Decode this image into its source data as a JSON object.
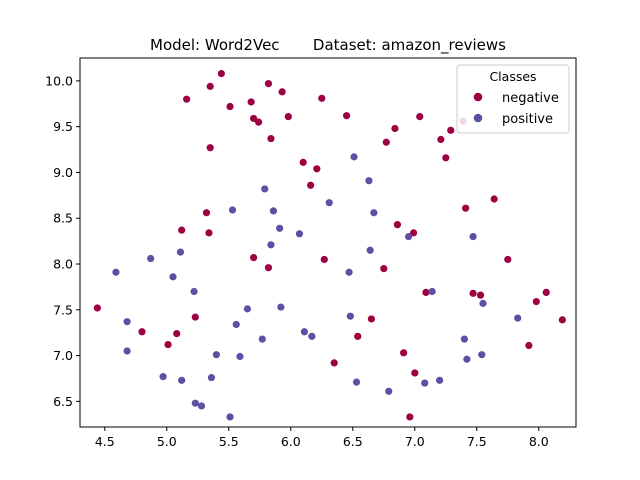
{
  "chart_data": {
    "type": "scatter",
    "title": "Model: Word2Vec       Dataset: amazon_reviews",
    "xlabel": "",
    "ylabel": "",
    "xlim": [
      4.3,
      8.3
    ],
    "ylim": [
      6.22,
      10.25
    ],
    "xticks": [
      "4.5",
      "5.0",
      "5.5",
      "6.0",
      "6.5",
      "7.0",
      "7.5",
      "8.0"
    ],
    "yticks": [
      "6.5",
      "7.0",
      "7.5",
      "8.0",
      "8.5",
      "9.0",
      "9.5",
      "10.0"
    ],
    "grid": false,
    "legend": {
      "title": "Classes",
      "placement": "top-right"
    },
    "series": [
      {
        "name": "negative",
        "color": "#9e0142",
        "points": [
          [
            4.44,
            7.52
          ],
          [
            4.8,
            7.26
          ],
          [
            5.01,
            7.12
          ],
          [
            5.08,
            7.24
          ],
          [
            5.12,
            8.37
          ],
          [
            5.16,
            9.8
          ],
          [
            5.23,
            7.42
          ],
          [
            5.32,
            8.56
          ],
          [
            5.34,
            8.34
          ],
          [
            5.35,
            9.94
          ],
          [
            5.35,
            9.27
          ],
          [
            5.44,
            10.08
          ],
          [
            5.51,
            9.72
          ],
          [
            5.68,
            9.77
          ],
          [
            5.7,
            8.07
          ],
          [
            5.7,
            9.59
          ],
          [
            5.74,
            9.55
          ],
          [
            5.82,
            9.97
          ],
          [
            5.82,
            7.96
          ],
          [
            5.84,
            9.37
          ],
          [
            5.93,
            9.88
          ],
          [
            5.98,
            9.61
          ],
          [
            6.1,
            9.11
          ],
          [
            6.16,
            8.86
          ],
          [
            6.21,
            9.04
          ],
          [
            6.25,
            9.81
          ],
          [
            6.27,
            8.05
          ],
          [
            6.35,
            6.92
          ],
          [
            6.45,
            9.62
          ],
          [
            6.54,
            7.21
          ],
          [
            6.65,
            7.4
          ],
          [
            6.75,
            7.95
          ],
          [
            6.77,
            9.33
          ],
          [
            6.84,
            9.48
          ],
          [
            6.86,
            8.43
          ],
          [
            6.91,
            7.03
          ],
          [
            6.96,
            6.33
          ],
          [
            6.99,
            8.34
          ],
          [
            7.0,
            6.81
          ],
          [
            7.04,
            9.61
          ],
          [
            7.09,
            7.69
          ],
          [
            7.21,
            9.36
          ],
          [
            7.25,
            9.16
          ],
          [
            7.29,
            9.46
          ],
          [
            7.39,
            9.56
          ],
          [
            7.41,
            8.61
          ],
          [
            7.47,
            7.68
          ],
          [
            7.53,
            7.66
          ],
          [
            7.64,
            8.71
          ],
          [
            7.75,
            8.05
          ],
          [
            7.92,
            7.11
          ],
          [
            7.98,
            7.59
          ],
          [
            8.06,
            7.69
          ],
          [
            8.19,
            7.39
          ]
        ]
      },
      {
        "name": "positive",
        "color": "#5e4fa2",
        "points": [
          [
            4.59,
            7.91
          ],
          [
            4.68,
            7.37
          ],
          [
            4.68,
            7.05
          ],
          [
            4.87,
            8.06
          ],
          [
            4.97,
            6.77
          ],
          [
            5.05,
            7.86
          ],
          [
            5.11,
            8.13
          ],
          [
            5.12,
            6.73
          ],
          [
            5.22,
            7.7
          ],
          [
            5.23,
            6.48
          ],
          [
            5.28,
            6.45
          ],
          [
            5.36,
            6.76
          ],
          [
            5.4,
            7.01
          ],
          [
            5.51,
            6.33
          ],
          [
            5.53,
            8.59
          ],
          [
            5.56,
            7.34
          ],
          [
            5.59,
            6.99
          ],
          [
            5.65,
            7.51
          ],
          [
            5.77,
            7.18
          ],
          [
            5.79,
            8.82
          ],
          [
            5.84,
            8.21
          ],
          [
            5.86,
            8.58
          ],
          [
            5.91,
            8.39
          ],
          [
            5.92,
            7.53
          ],
          [
            6.07,
            8.33
          ],
          [
            6.11,
            7.26
          ],
          [
            6.17,
            7.21
          ],
          [
            6.31,
            8.67
          ],
          [
            6.47,
            7.91
          ],
          [
            6.48,
            7.43
          ],
          [
            6.51,
            9.17
          ],
          [
            6.53,
            6.71
          ],
          [
            6.63,
            8.91
          ],
          [
            6.64,
            8.15
          ],
          [
            6.67,
            8.56
          ],
          [
            6.79,
            6.61
          ],
          [
            6.95,
            8.3
          ],
          [
            7.08,
            6.7
          ],
          [
            7.14,
            7.7
          ],
          [
            7.2,
            6.73
          ],
          [
            7.4,
            7.18
          ],
          [
            7.42,
            6.96
          ],
          [
            7.47,
            8.3
          ],
          [
            7.54,
            7.01
          ],
          [
            7.55,
            7.57
          ],
          [
            7.83,
            7.41
          ]
        ]
      }
    ]
  }
}
